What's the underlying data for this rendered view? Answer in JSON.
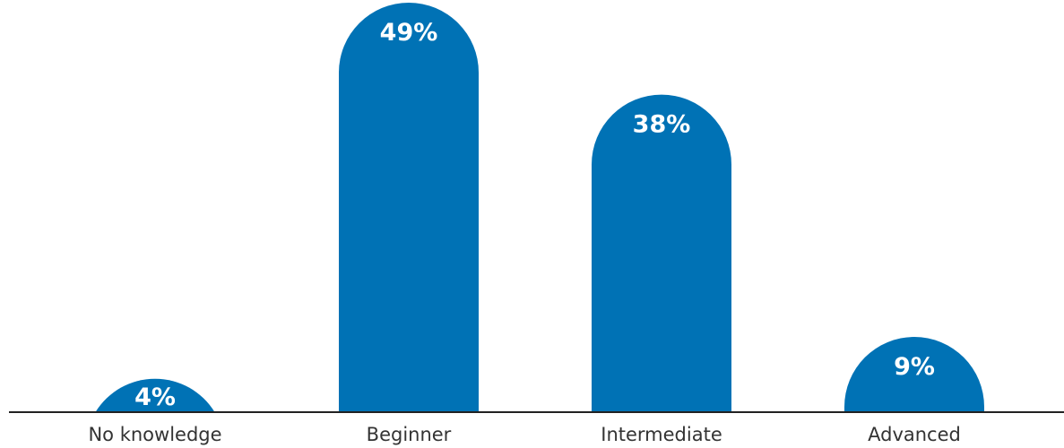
{
  "chart_data": {
    "type": "bar",
    "categories": [
      "No knowledge",
      "Beginner",
      "Intermediate",
      "Advanced"
    ],
    "values": [
      4,
      49,
      38,
      9
    ],
    "value_labels": [
      "4%",
      "49%",
      "38%",
      "9%"
    ],
    "ylim": [
      0,
      49
    ],
    "grid": false,
    "bar_color": "#0072b5",
    "baseline_color": "#222222",
    "bar_style": "rounded-top"
  }
}
